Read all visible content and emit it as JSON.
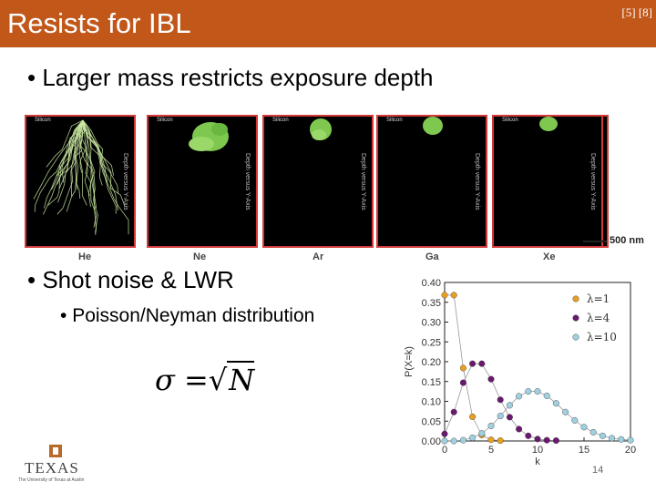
{
  "slide": {
    "title": "Resists for IBL",
    "refs": "[5] [8]",
    "bullets": [
      "Larger mass restricts exposure depth",
      "Shot noise & LWR",
      "Poisson/Neyman distribution"
    ],
    "formula": {
      "lhs": "σ =",
      "radical": "√",
      "var": "N"
    },
    "page_number": "14",
    "logo": {
      "name": "TEXAS",
      "subtitle": "The University of Texas at Austin"
    }
  },
  "simulation": {
    "panel_label": "Silicon",
    "side_label": "Depth versus Y-Axis",
    "scale_label": "500 nm",
    "elements": [
      "He",
      "Ne",
      "Ar",
      "Ga",
      "Xe"
    ],
    "colors": {
      "border": "#d23a3a",
      "track_he": "#c8e6a0",
      "track_heavy": "#7ec850"
    }
  },
  "chart_data": {
    "type": "line",
    "xlabel": "k",
    "ylabel": "P(X=k)",
    "xlim": [
      0,
      20
    ],
    "ylim": [
      0,
      0.4
    ],
    "xticks": [
      0,
      5,
      10,
      15,
      20
    ],
    "yticks": [
      0.0,
      0.05,
      0.1,
      0.15,
      0.2,
      0.25,
      0.3,
      0.35,
      0.4
    ],
    "legend_position": "top-right",
    "series": [
      {
        "name": "λ=1",
        "color": "#e8a020",
        "x": [
          0,
          1,
          2,
          3,
          4,
          5,
          6
        ],
        "values": [
          0.368,
          0.368,
          0.184,
          0.061,
          0.015,
          0.003,
          0.001
        ]
      },
      {
        "name": "λ=4",
        "color": "#6a1a6e",
        "x": [
          0,
          1,
          2,
          3,
          4,
          5,
          6,
          7,
          8,
          9,
          10,
          11,
          12
        ],
        "values": [
          0.018,
          0.073,
          0.147,
          0.195,
          0.195,
          0.156,
          0.104,
          0.06,
          0.03,
          0.013,
          0.005,
          0.002,
          0.001
        ]
      },
      {
        "name": "λ=10",
        "color": "#9fd0e0",
        "x": [
          0,
          1,
          2,
          3,
          4,
          5,
          6,
          7,
          8,
          9,
          10,
          11,
          12,
          13,
          14,
          15,
          16,
          17,
          18,
          19,
          20
        ],
        "values": [
          0.0,
          0.0,
          0.002,
          0.008,
          0.019,
          0.038,
          0.063,
          0.09,
          0.113,
          0.125,
          0.125,
          0.114,
          0.095,
          0.073,
          0.052,
          0.035,
          0.022,
          0.013,
          0.007,
          0.004,
          0.002
        ]
      }
    ]
  }
}
